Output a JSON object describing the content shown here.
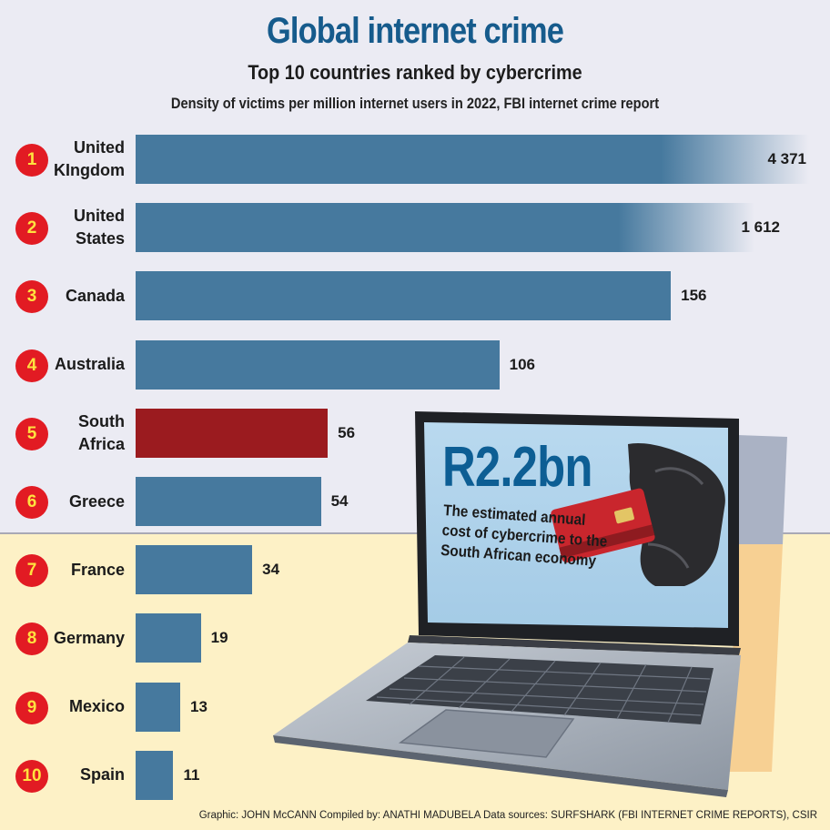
{
  "title": "Global internet crime",
  "subtitle": "Top 10 countries ranked by cybercrime",
  "description": "Density of victims per million internet users in 2022, FBI internet crime report",
  "credit": "Graphic: JOHN McCANN  Compiled by: ANATHI MADUBELA  Data sources: SURFSHARK (FBI INTERNET CRIME REPORTS), CSIR",
  "laptop_screen": {
    "headline": "R2.2bn",
    "caption": "The estimated annual cost of cybercrime to the South African economy"
  },
  "colors": {
    "bar": "#46799e",
    "highlight": "#9b1b1f",
    "rank_circle": "#e21b23",
    "rank_text": "#ffe23f",
    "title": "#165b8c"
  },
  "chart_data": {
    "type": "bar",
    "orientation": "horizontal",
    "categories": [
      "United\nKIngdom",
      "United\nStates",
      "Canada",
      "Australia",
      "South\nAfrica",
      "Greece",
      "France",
      "Germany",
      "Mexico",
      "Spain"
    ],
    "ranks": [
      "1",
      "2",
      "3",
      "4",
      "5",
      "6",
      "7",
      "8",
      "9",
      "10"
    ],
    "values": [
      4371,
      1612,
      156,
      106,
      56,
      54,
      34,
      19,
      13,
      11
    ],
    "value_labels": [
      "4 371",
      "1 612",
      "156",
      "106",
      "56",
      "54",
      "34",
      "19",
      "13",
      "11"
    ],
    "highlight": "South\nAfrica",
    "faded_bars": [
      "United\nKIngdom",
      "United\nStates"
    ]
  }
}
